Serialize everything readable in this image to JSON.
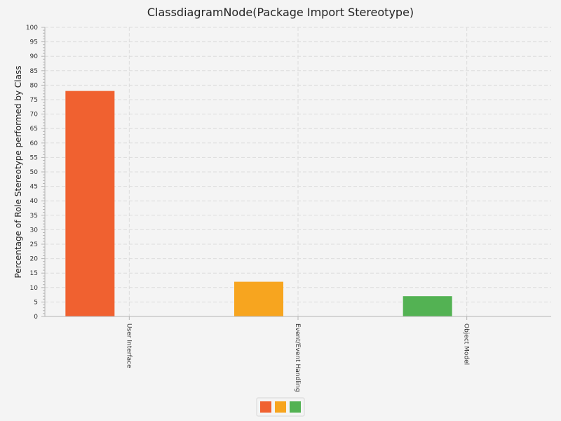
{
  "chart_data": {
    "type": "bar",
    "title": "ClassdiagramNode(Package Import Stereotype)",
    "xlabel": "",
    "ylabel": "Percentage of Role Stereotype performed by Class",
    "ylim": [
      0,
      100
    ],
    "y_major_tick": 5,
    "y_minor_tick": 1,
    "grid": true,
    "legend_position": "bottom-center",
    "categories": [
      "User Interface",
      "Event/Event Handling",
      "Object Model"
    ],
    "series": [
      {
        "values": [
          78,
          12,
          7
        ],
        "colors": [
          "#f06130",
          "#f7a51f",
          "#53b253"
        ]
      }
    ],
    "legend": [
      {
        "color": "#f06130"
      },
      {
        "color": "#f7a51f"
      },
      {
        "color": "#53b253"
      }
    ]
  }
}
